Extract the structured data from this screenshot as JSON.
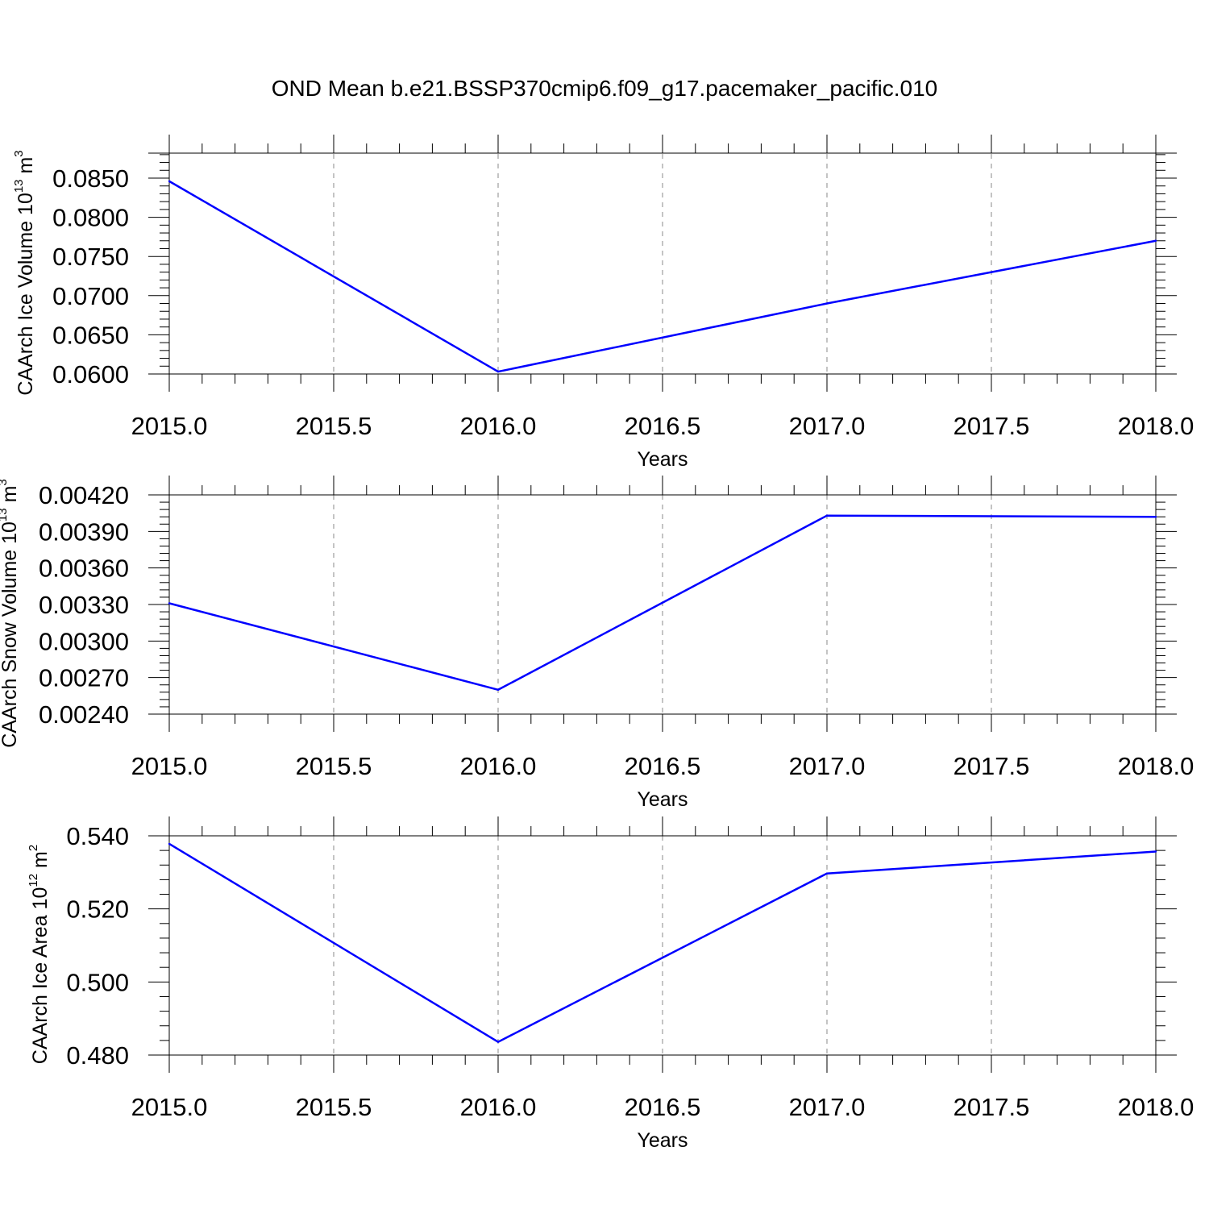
{
  "title": "OND Mean b.e21.BSSP370cmip6.f09_g17.pacemaker_pacific.010",
  "chart_data": [
    {
      "type": "line",
      "ylabel_prefix": "CAArch Ice Volume 10",
      "ylabel_exponent": "13",
      "ylabel_unit": " m",
      "ylabel_unit_exponent": "3",
      "xlabel": "Years",
      "x": [
        2015,
        2016,
        2017,
        2018
      ],
      "y": [
        0.0846,
        0.0603,
        0.069,
        0.077
      ],
      "xlim": [
        2015.0,
        2018.0
      ],
      "ylim": [
        0.06,
        0.088
      ],
      "xticks": [
        "2015.0",
        "2015.5",
        "2016.0",
        "2016.5",
        "2017.0",
        "2017.5",
        "2018.0"
      ],
      "yticks": [
        "0.0600",
        "0.0650",
        "0.0700",
        "0.0750",
        "0.0800",
        "0.0850"
      ],
      "line_color": "#0000ff",
      "grid": "vertical dashed"
    },
    {
      "type": "line",
      "ylabel_prefix": "CAArch Snow Volume 10",
      "ylabel_exponent": "13",
      "ylabel_unit": " m",
      "ylabel_unit_exponent": "3",
      "xlabel": "Years",
      "x": [
        2015,
        2016,
        2017,
        2018
      ],
      "y": [
        0.00331,
        0.0026,
        0.00403,
        0.00402
      ],
      "xlim": [
        2015.0,
        2018.0
      ],
      "ylim": [
        0.0024,
        0.0042
      ],
      "xticks": [
        "2015.0",
        "2015.5",
        "2016.0",
        "2016.5",
        "2017.0",
        "2017.5",
        "2018.0"
      ],
      "yticks": [
        "0.00240",
        "0.00270",
        "0.00300",
        "0.00330",
        "0.00360",
        "0.00390",
        "0.00420"
      ],
      "line_color": "#0000ff",
      "grid": "vertical dashed"
    },
    {
      "type": "line",
      "ylabel_prefix": "CAArch Ice Area 10",
      "ylabel_exponent": "12",
      "ylabel_unit": " m",
      "ylabel_unit_exponent": "2",
      "xlabel": "Years",
      "x": [
        2015,
        2016,
        2017,
        2018
      ],
      "y": [
        0.5378,
        0.4836,
        0.5297,
        0.5357
      ],
      "xlim": [
        2015.0,
        2018.0
      ],
      "ylim": [
        0.48,
        0.54
      ],
      "xticks": [
        "2015.0",
        "2015.5",
        "2016.0",
        "2016.5",
        "2017.0",
        "2017.5",
        "2018.0"
      ],
      "yticks": [
        "0.480",
        "0.500",
        "0.520",
        "0.540"
      ],
      "line_color": "#0000ff",
      "grid": "vertical dashed"
    }
  ]
}
